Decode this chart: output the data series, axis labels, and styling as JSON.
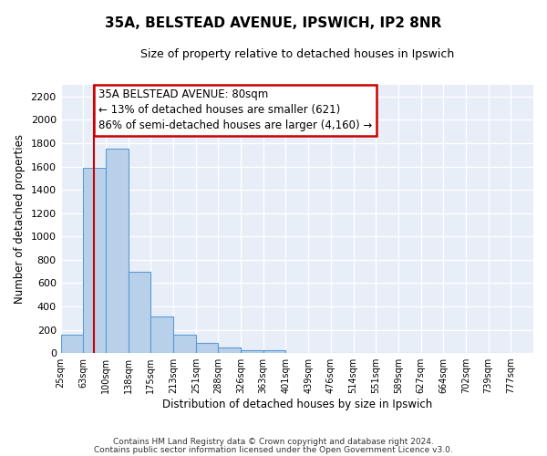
{
  "title": "35A, BELSTEAD AVENUE, IPSWICH, IP2 8NR",
  "subtitle": "Size of property relative to detached houses in Ipswich",
  "xlabel": "Distribution of detached houses by size in Ipswich",
  "ylabel": "Number of detached properties",
  "bar_values": [
    160,
    1590,
    1750,
    700,
    315,
    160,
    85,
    45,
    25,
    25,
    0,
    0,
    0,
    0,
    0,
    0,
    0,
    0,
    0,
    0
  ],
  "bin_labels": [
    "25sqm",
    "63sqm",
    "100sqm",
    "138sqm",
    "175sqm",
    "213sqm",
    "251sqm",
    "288sqm",
    "326sqm",
    "363sqm",
    "401sqm",
    "439sqm",
    "476sqm",
    "514sqm",
    "551sqm",
    "589sqm",
    "627sqm",
    "664sqm",
    "702sqm",
    "739sqm",
    "777sqm"
  ],
  "bar_color": "#b8d0ea",
  "bar_edge_color": "#5b9bd5",
  "property_line_color": "#cc0000",
  "annotation_line1": "35A BELSTEAD AVENUE: 80sqm",
  "annotation_line2": "← 13% of detached houses are smaller (621)",
  "annotation_line3": "86% of semi-detached houses are larger (4,160) →",
  "annotation_box_color": "#ffffff",
  "annotation_box_edge": "#cc0000",
  "ylim": [
    0,
    2300
  ],
  "yticks": [
    0,
    200,
    400,
    600,
    800,
    1000,
    1200,
    1400,
    1600,
    1800,
    2000,
    2200
  ],
  "footer_line1": "Contains HM Land Registry data © Crown copyright and database right 2024.",
  "footer_line2": "Contains public sector information licensed under the Open Government Licence v3.0.",
  "background_color": "#e8eef8"
}
